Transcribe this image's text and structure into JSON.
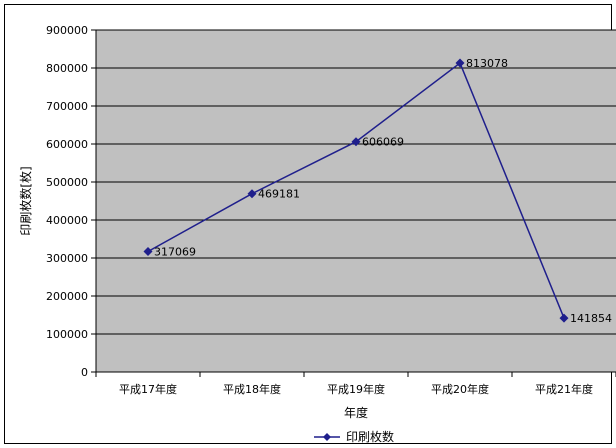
{
  "chart_data": {
    "type": "line",
    "categories": [
      "平成17年度",
      "平成18年度",
      "平成19年度",
      "平成20年度",
      "平成21年度"
    ],
    "series": [
      {
        "name": "印刷枚数",
        "values": [
          317069,
          469181,
          606069,
          813078,
          141854
        ],
        "color": "#1F1F8C"
      }
    ],
    "data_labels": [
      "317069",
      "469181",
      "606069",
      "813078",
      "141854"
    ],
    "yticks": [
      "0",
      "100000",
      "200000",
      "300000",
      "400000",
      "500000",
      "600000",
      "700000",
      "800000",
      "900000"
    ],
    "ylim": [
      0,
      900000
    ],
    "xlabel": "年度",
    "ylabel": "印刷枚数[枚]",
    "legend": "bottom",
    "grid": true,
    "plot_background": "#C0C0C0"
  }
}
